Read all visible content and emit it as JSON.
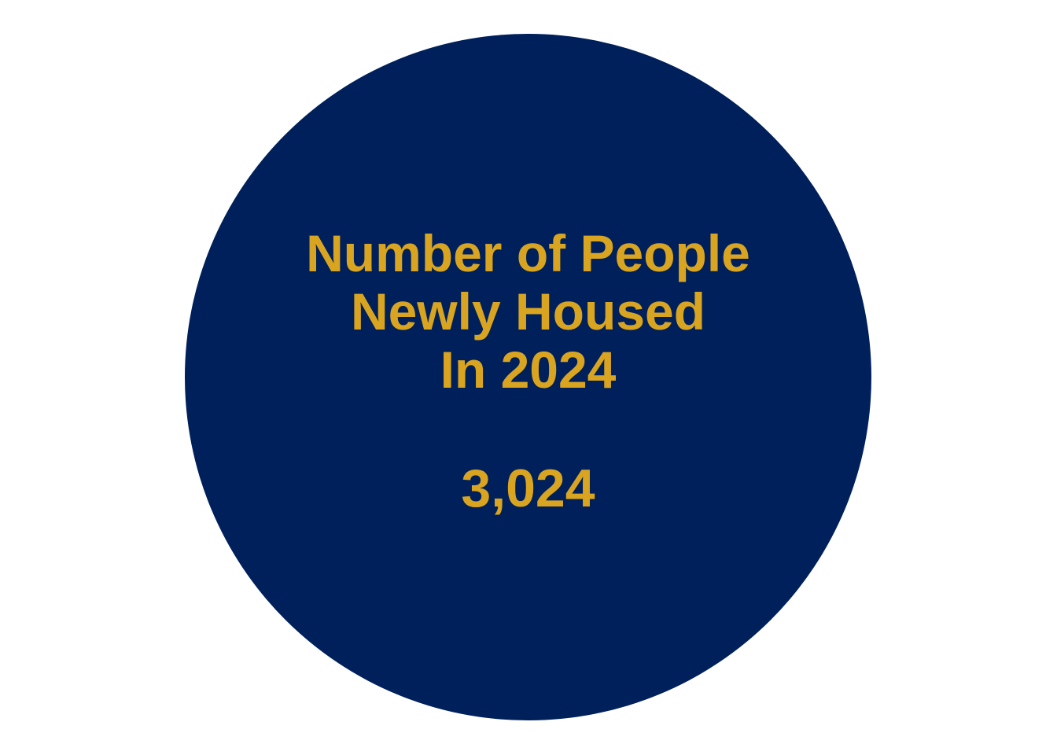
{
  "colors": {
    "background": "#ffffff",
    "circle": "#00205b",
    "text": "#d9a521"
  },
  "stat": {
    "heading_lines": [
      "Number of People",
      "Newly Housed",
      "In 2024"
    ],
    "value": "3,024"
  }
}
